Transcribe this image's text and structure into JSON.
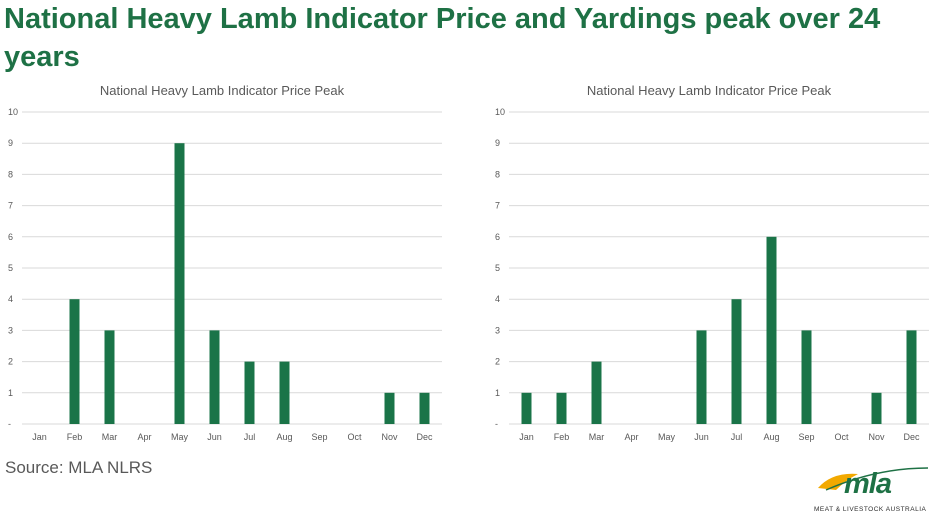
{
  "headline": "National Heavy Lamb Indicator Price and Yardings peak over 24 years",
  "source": "Source: MLA NLRS",
  "logo": {
    "word": "mla",
    "tagline": "MEAT & LIVESTOCK AUSTRALIA"
  },
  "colors": {
    "headline": "#1e7145",
    "bar": "#1a7448",
    "grid": "#d9d9d9",
    "axis_text": "#595959",
    "logo_sun": "#f2a900",
    "logo_green": "#1e7145"
  },
  "chart_data": [
    {
      "type": "bar",
      "title": "National Heavy Lamb Indicator Price Peak",
      "categories": [
        "Jan",
        "Feb",
        "Mar",
        "Apr",
        "May",
        "Jun",
        "Jul",
        "Aug",
        "Sep",
        "Oct",
        "Nov",
        "Dec"
      ],
      "values": [
        0,
        4,
        3,
        0,
        9,
        3,
        2,
        2,
        0,
        0,
        1,
        1
      ],
      "y_ticks": [
        "-",
        "1",
        "2",
        "3",
        "4",
        "5",
        "6",
        "7",
        "8",
        "9",
        "10"
      ],
      "ylim": [
        0,
        10
      ],
      "grid": true,
      "xlabel": "",
      "ylabel": ""
    },
    {
      "type": "bar",
      "title": "National Heavy Lamb Indicator Price Peak",
      "categories": [
        "Jan",
        "Feb",
        "Mar",
        "Apr",
        "May",
        "Jun",
        "Jul",
        "Aug",
        "Sep",
        "Oct",
        "Nov",
        "Dec"
      ],
      "values": [
        1,
        1,
        2,
        0,
        0,
        3,
        4,
        6,
        3,
        0,
        1,
        3
      ],
      "y_ticks": [
        "-",
        "1",
        "2",
        "3",
        "4",
        "5",
        "6",
        "7",
        "8",
        "9",
        "10"
      ],
      "ylim": [
        0,
        10
      ],
      "grid": true,
      "xlabel": "",
      "ylabel": ""
    }
  ]
}
